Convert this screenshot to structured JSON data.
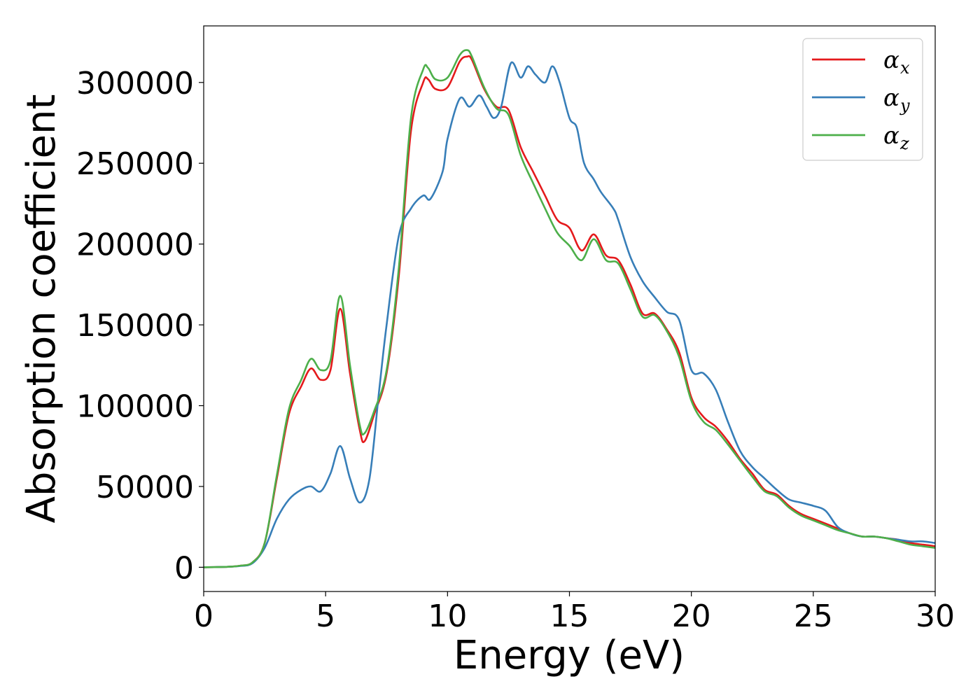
{
  "chart_data": {
    "type": "line",
    "title": "",
    "xlabel": "Energy (eV)",
    "ylabel": "Absorption coefficient",
    "xlim": [
      0,
      30
    ],
    "ylim": [
      -15000,
      335000
    ],
    "xticks": [
      0,
      5,
      10,
      15,
      20,
      25,
      30
    ],
    "yticks": [
      0,
      50000,
      100000,
      150000,
      200000,
      250000,
      300000
    ],
    "grid": false,
    "legend_position": "top-right",
    "series": [
      {
        "name": "αx",
        "symbol": "α",
        "subscript": "x",
        "color": "#e41a1c",
        "points": [
          [
            0,
            0
          ],
          [
            1,
            300
          ],
          [
            1.5,
            1000
          ],
          [
            2,
            3000
          ],
          [
            2.5,
            15000
          ],
          [
            3,
            55000
          ],
          [
            3.5,
            95000
          ],
          [
            4,
            112000
          ],
          [
            4.4,
            123000
          ],
          [
            4.8,
            116000
          ],
          [
            5.2,
            122000
          ],
          [
            5.6,
            160000
          ],
          [
            6,
            120000
          ],
          [
            6.4,
            85000
          ],
          [
            6.6,
            78000
          ],
          [
            7,
            95000
          ],
          [
            7.5,
            120000
          ],
          [
            8,
            180000
          ],
          [
            8.5,
            270000
          ],
          [
            9,
            300000
          ],
          [
            9.2,
            302000
          ],
          [
            9.5,
            296000
          ],
          [
            10,
            297000
          ],
          [
            10.5,
            313000
          ],
          [
            10.8,
            316000
          ],
          [
            11,
            314000
          ],
          [
            11.5,
            296000
          ],
          [
            12,
            285000
          ],
          [
            12.5,
            283000
          ],
          [
            13,
            260000
          ],
          [
            13.5,
            245000
          ],
          [
            14,
            230000
          ],
          [
            14.5,
            215000
          ],
          [
            15,
            210000
          ],
          [
            15.5,
            196000
          ],
          [
            16,
            206000
          ],
          [
            16.5,
            193000
          ],
          [
            17,
            190000
          ],
          [
            17.5,
            175000
          ],
          [
            18,
            157000
          ],
          [
            18.5,
            157000
          ],
          [
            19,
            147000
          ],
          [
            19.5,
            133000
          ],
          [
            20,
            105000
          ],
          [
            20.5,
            93000
          ],
          [
            21,
            87000
          ],
          [
            21.5,
            78000
          ],
          [
            22,
            67000
          ],
          [
            22.5,
            58000
          ],
          [
            23,
            48000
          ],
          [
            23.5,
            45000
          ],
          [
            24,
            38000
          ],
          [
            24.5,
            33000
          ],
          [
            25,
            30000
          ],
          [
            25.5,
            27000
          ],
          [
            26,
            24000
          ],
          [
            26.5,
            21000
          ],
          [
            27,
            19000
          ],
          [
            27.5,
            19000
          ],
          [
            28,
            18000
          ],
          [
            28.5,
            17000
          ],
          [
            29,
            15000
          ],
          [
            29.5,
            14000
          ],
          [
            30,
            13000
          ]
        ]
      },
      {
        "name": "αy",
        "symbol": "α",
        "subscript": "y",
        "color": "#377eb8",
        "points": [
          [
            0,
            0
          ],
          [
            1,
            300
          ],
          [
            1.5,
            800
          ],
          [
            2,
            2500
          ],
          [
            2.5,
            12000
          ],
          [
            3,
            30000
          ],
          [
            3.5,
            42000
          ],
          [
            4,
            48000
          ],
          [
            4.4,
            50000
          ],
          [
            4.8,
            47000
          ],
          [
            5.2,
            58000
          ],
          [
            5.6,
            75000
          ],
          [
            6,
            55000
          ],
          [
            6.4,
            40000
          ],
          [
            6.8,
            55000
          ],
          [
            7.2,
            110000
          ],
          [
            7.5,
            150000
          ],
          [
            8,
            205000
          ],
          [
            8.5,
            222000
          ],
          [
            9,
            230000
          ],
          [
            9.3,
            228000
          ],
          [
            9.8,
            245000
          ],
          [
            10,
            265000
          ],
          [
            10.5,
            290000
          ],
          [
            10.9,
            285000
          ],
          [
            11.3,
            292000
          ],
          [
            11.6,
            285000
          ],
          [
            11.9,
            278000
          ],
          [
            12.2,
            285000
          ],
          [
            12.6,
            312000
          ],
          [
            13,
            303000
          ],
          [
            13.3,
            310000
          ],
          [
            13.6,
            305000
          ],
          [
            14,
            300000
          ],
          [
            14.3,
            310000
          ],
          [
            14.6,
            300000
          ],
          [
            15,
            278000
          ],
          [
            15.3,
            272000
          ],
          [
            15.6,
            250000
          ],
          [
            16,
            240000
          ],
          [
            16.3,
            232000
          ],
          [
            16.8,
            222000
          ],
          [
            17,
            215000
          ],
          [
            17.5,
            192000
          ],
          [
            18,
            177000
          ],
          [
            18.5,
            167000
          ],
          [
            19,
            158000
          ],
          [
            19.5,
            153000
          ],
          [
            20,
            122000
          ],
          [
            20.5,
            120000
          ],
          [
            21,
            110000
          ],
          [
            21.5,
            90000
          ],
          [
            22,
            72000
          ],
          [
            22.5,
            62000
          ],
          [
            23,
            55000
          ],
          [
            23.5,
            48000
          ],
          [
            24,
            42000
          ],
          [
            24.5,
            40000
          ],
          [
            25,
            38000
          ],
          [
            25.5,
            35000
          ],
          [
            26,
            25000
          ],
          [
            26.5,
            21000
          ],
          [
            27,
            19000
          ],
          [
            27.5,
            19000
          ],
          [
            28,
            18000
          ],
          [
            28.5,
            17000
          ],
          [
            29,
            16000
          ],
          [
            29.5,
            16000
          ],
          [
            30,
            15000
          ]
        ]
      },
      {
        "name": "αz",
        "symbol": "α",
        "subscript": "z",
        "color": "#4daf4a",
        "points": [
          [
            0,
            0
          ],
          [
            1,
            300
          ],
          [
            1.5,
            1000
          ],
          [
            2,
            3000
          ],
          [
            2.5,
            15000
          ],
          [
            3,
            57000
          ],
          [
            3.5,
            98000
          ],
          [
            4,
            116000
          ],
          [
            4.4,
            129000
          ],
          [
            4.8,
            122000
          ],
          [
            5.2,
            128000
          ],
          [
            5.6,
            168000
          ],
          [
            6,
            125000
          ],
          [
            6.4,
            88000
          ],
          [
            6.6,
            83000
          ],
          [
            7,
            97000
          ],
          [
            7.5,
            122000
          ],
          [
            8,
            185000
          ],
          [
            8.5,
            278000
          ],
          [
            9,
            308000
          ],
          [
            9.2,
            309000
          ],
          [
            9.5,
            302000
          ],
          [
            10,
            303000
          ],
          [
            10.5,
            317000
          ],
          [
            10.8,
            320000
          ],
          [
            11,
            316000
          ],
          [
            11.5,
            297000
          ],
          [
            12,
            284000
          ],
          [
            12.5,
            280000
          ],
          [
            13,
            255000
          ],
          [
            13.5,
            238000
          ],
          [
            14,
            222000
          ],
          [
            14.5,
            207000
          ],
          [
            15,
            199000
          ],
          [
            15.5,
            190000
          ],
          [
            16,
            203000
          ],
          [
            16.5,
            190000
          ],
          [
            17,
            188000
          ],
          [
            17.5,
            172000
          ],
          [
            18,
            155000
          ],
          [
            18.5,
            156000
          ],
          [
            19,
            146000
          ],
          [
            19.5,
            130000
          ],
          [
            20,
            103000
          ],
          [
            20.5,
            90000
          ],
          [
            21,
            85000
          ],
          [
            21.5,
            76000
          ],
          [
            22,
            66000
          ],
          [
            22.5,
            56000
          ],
          [
            23,
            47000
          ],
          [
            23.5,
            44000
          ],
          [
            24,
            37000
          ],
          [
            24.5,
            32000
          ],
          [
            25,
            29000
          ],
          [
            25.5,
            26000
          ],
          [
            26,
            23000
          ],
          [
            26.5,
            21000
          ],
          [
            27,
            19000
          ],
          [
            27.5,
            19000
          ],
          [
            28,
            18000
          ],
          [
            28.5,
            16000
          ],
          [
            29,
            14000
          ],
          [
            29.5,
            13000
          ],
          [
            30,
            12000
          ]
        ]
      }
    ]
  }
}
